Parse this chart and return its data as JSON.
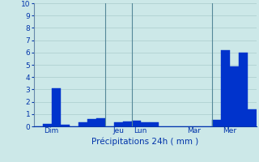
{
  "title": "",
  "xlabel": "Précipitations 24h ( mm )",
  "ylim": [
    0,
    10
  ],
  "yticks": [
    0,
    1,
    2,
    3,
    4,
    5,
    6,
    7,
    8,
    9,
    10
  ],
  "background_color": "#cce8e8",
  "bar_color": "#0033cc",
  "bar_edge_color": "#0033cc",
  "grid_color": "#aacccc",
  "vline_color": "#558899",
  "values": [
    0.0,
    0.2,
    3.1,
    0.15,
    0.0,
    0.3,
    0.6,
    0.65,
    0.0,
    0.3,
    0.4,
    0.45,
    0.35,
    0.3,
    0.0,
    0.0,
    0.0,
    0.0,
    0.0,
    0.0,
    0.5,
    6.2,
    4.9,
    6.0,
    1.4
  ],
  "day_labels": [
    "Dim",
    "Jeu",
    "Lun",
    "Mar",
    "Mer"
  ],
  "vline_bar_indices": [
    8,
    11,
    20
  ],
  "n_bars": 25,
  "xlabel_color": "#0033aa",
  "tick_color": "#0033aa",
  "ytick_fontsize": 6.5,
  "xtick_fontsize": 6.5,
  "xlabel_fontsize": 7.5
}
